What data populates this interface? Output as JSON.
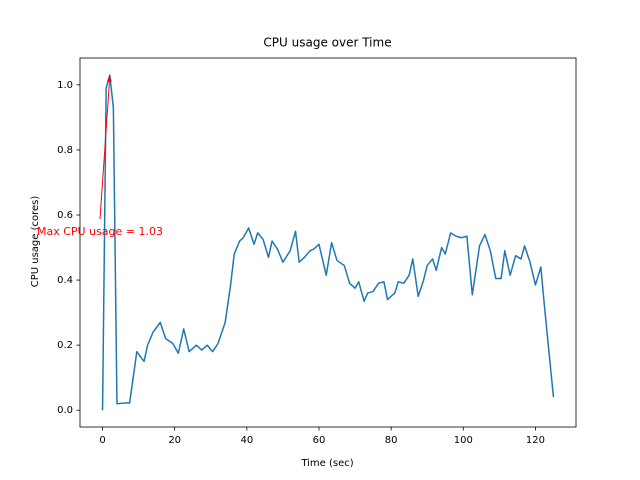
{
  "chart_data": {
    "type": "line",
    "title": "CPU usage over Time",
    "xlabel": "Time (sec)",
    "ylabel": "CPU usage (cores)",
    "x": [
      0,
      1,
      2,
      3,
      4,
      6,
      7.5,
      9.5,
      11.5,
      12.5,
      14,
      16,
      17.5,
      19.5,
      21,
      22.5,
      24,
      26,
      27.5,
      29,
      30.5,
      32,
      34,
      35.5,
      36.5,
      38,
      39,
      40.5,
      42,
      43,
      44.5,
      46,
      47,
      48.5,
      50,
      52,
      53.5,
      54.5,
      56,
      57.5,
      58.5,
      60,
      62,
      63.5,
      65,
      67,
      68.5,
      70,
      71,
      72.5,
      73.5,
      75,
      76.5,
      78,
      79,
      81,
      82,
      83.5,
      85,
      86,
      87.5,
      89,
      90,
      91.5,
      92.5,
      94,
      95,
      96.5,
      98,
      99.5,
      101,
      102.5,
      104.5,
      106,
      107.5,
      109,
      110.5,
      111.5,
      113,
      114.5,
      116,
      117,
      118.5,
      120,
      121.5,
      122.5,
      125
    ],
    "series": [
      {
        "name": "CPU usage",
        "color": "#1f77b4",
        "values": [
          0,
          0.99,
          1.03,
          0.93,
          0.02,
          0.022,
          0.022,
          0.18,
          0.15,
          0.2,
          0.24,
          0.27,
          0.22,
          0.205,
          0.175,
          0.25,
          0.18,
          0.2,
          0.185,
          0.2,
          0.18,
          0.205,
          0.27,
          0.385,
          0.48,
          0.52,
          0.53,
          0.56,
          0.51,
          0.545,
          0.525,
          0.47,
          0.52,
          0.495,
          0.455,
          0.49,
          0.55,
          0.455,
          0.47,
          0.49,
          0.495,
          0.51,
          0.415,
          0.515,
          0.46,
          0.445,
          0.39,
          0.375,
          0.395,
          0.335,
          0.36,
          0.365,
          0.39,
          0.395,
          0.34,
          0.36,
          0.395,
          0.39,
          0.415,
          0.465,
          0.35,
          0.4,
          0.445,
          0.465,
          0.43,
          0.5,
          0.48,
          0.545,
          0.535,
          0.53,
          0.535,
          0.355,
          0.505,
          0.54,
          0.49,
          0.405,
          0.405,
          0.49,
          0.415,
          0.475,
          0.465,
          0.505,
          0.455,
          0.385,
          0.44,
          0.32,
          0.04
        ]
      }
    ],
    "xlim": [
      -6.25,
      131.25
    ],
    "xticks": [
      0,
      20,
      40,
      60,
      80,
      100,
      120
    ],
    "ylim": [
      -0.0516,
      1.0826
    ],
    "yticks": [
      {
        "value": 0,
        "label": "0.0"
      },
      {
        "value": 0.2,
        "label": "0.2"
      },
      {
        "value": 0.4,
        "label": "0.4"
      },
      {
        "value": 0.6,
        "label": "0.6"
      },
      {
        "value": 0.8,
        "label": "0.8"
      },
      {
        "value": 1,
        "label": "1.0"
      }
    ],
    "annotation": {
      "text": "Max CPU usage = 1.03",
      "x": 2,
      "y": 1.03,
      "color": "#ff0000"
    }
  }
}
